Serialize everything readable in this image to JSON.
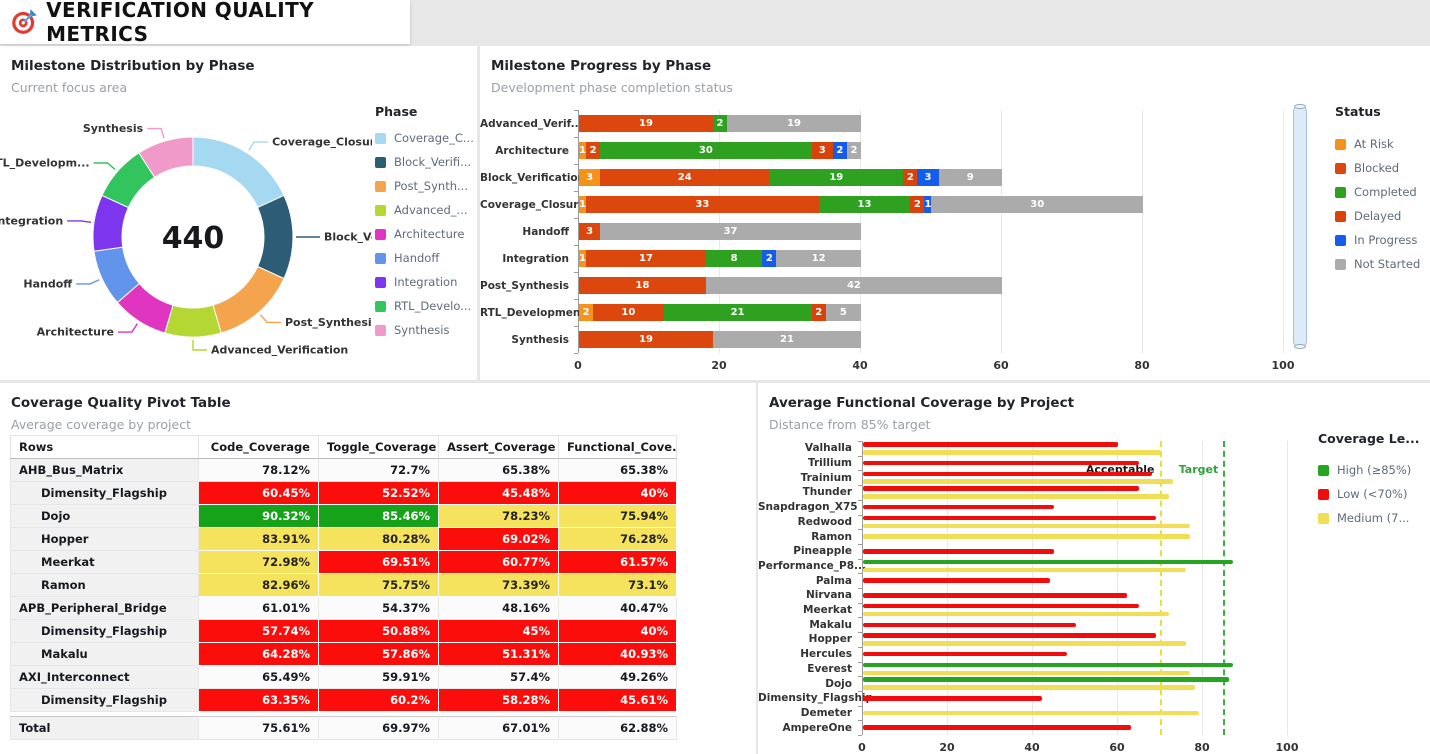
{
  "app": {
    "title": "VERIFICATION QUALITY METRICS",
    "icon": "target-dart-icon"
  },
  "chart_data": [
    {
      "id": "milestone_distribution",
      "type": "pie",
      "title": "Milestone Distribution by Phase",
      "subtitle": "Current focus area",
      "legend_title": "Phase",
      "center_label": "440",
      "labels": [
        "Coverage_Closure",
        "Block_Verification",
        "Post_Synthesis",
        "Advanced_Verification",
        "Architecture",
        "Handoff",
        "Integration",
        "RTL_Development",
        "Synthesis"
      ],
      "values": [
        80,
        60,
        60,
        40,
        40,
        40,
        40,
        40,
        40
      ],
      "colors": [
        "#A5D8F1",
        "#2D5C77",
        "#F4A44C",
        "#B4D733",
        "#DF35C1",
        "#6194EA",
        "#7D36EE",
        "#32C55E",
        "#F09ACA"
      ],
      "callout_labels": [
        "Coverage_Closure",
        "Block_Ve...",
        "Post_Synthesis",
        "Advanced_Verification",
        "Architecture",
        "Handoff",
        "Integration",
        "RTL_Developm...",
        "Synthesis"
      ],
      "legend_labels": [
        "Coverage_C...",
        "Block_Verifi...",
        "Post_Synth...",
        "Advanced_...",
        "Architecture",
        "Handoff",
        "Integration",
        "RTL_Develo...",
        "Synthesis"
      ]
    },
    {
      "id": "milestone_progress",
      "type": "bar",
      "orientation": "horizontal-stacked",
      "title": "Milestone Progress by Phase",
      "subtitle": "Development phase completion status",
      "legend_title": "Status",
      "categories": [
        "Advanced_Verif...",
        "Architecture",
        "Block_Verification",
        "Coverage_Closure",
        "Handoff",
        "Integration",
        "Post_Synthesis",
        "RTL_Development",
        "Synthesis"
      ],
      "series": [
        {
          "name": "At Risk",
          "color": "#F5921B",
          "values": [
            0,
            1,
            3,
            1,
            0,
            1,
            0,
            2,
            0
          ]
        },
        {
          "name": "Blocked",
          "color": "#DC470D",
          "values": [
            19,
            2,
            24,
            33,
            3,
            17,
            18,
            10,
            19
          ]
        },
        {
          "name": "Completed",
          "color": "#2EA121",
          "values": [
            2,
            30,
            19,
            13,
            0,
            8,
            0,
            21,
            0
          ]
        },
        {
          "name": "Delayed",
          "color": "#D9430B",
          "values": [
            0,
            3,
            2,
            2,
            0,
            0,
            0,
            2,
            0
          ]
        },
        {
          "name": "In Progress",
          "color": "#155CE8",
          "values": [
            0,
            2,
            3,
            1,
            0,
            2,
            0,
            0,
            0
          ]
        },
        {
          "name": "Not Started",
          "color": "#ABABAB",
          "values": [
            19,
            2,
            9,
            30,
            37,
            12,
            42,
            5,
            21
          ]
        }
      ],
      "x_ticks": [
        0,
        20,
        40,
        60,
        80,
        100
      ],
      "xlim": [
        0,
        100
      ]
    },
    {
      "id": "coverage_pivot",
      "type": "table",
      "title": "Coverage Quality Pivot Table",
      "subtitle": "Average coverage by project",
      "columns": [
        "Rows",
        "Code_Coverage",
        "Toggle_Coverage",
        "Assert_Coverage",
        "Functional_Cove..."
      ],
      "rows": [
        {
          "label": "AHB_Bus_Matrix",
          "indent": 0,
          "cells": [
            [
              "78.12%",
              "none"
            ],
            [
              "72.7%",
              "none"
            ],
            [
              "65.38%",
              "none"
            ],
            [
              "65.38%",
              "none"
            ]
          ]
        },
        {
          "label": "Dimensity_Flagship",
          "indent": 1,
          "cells": [
            [
              "60.45%",
              "red"
            ],
            [
              "52.52%",
              "red"
            ],
            [
              "45.48%",
              "red"
            ],
            [
              "40%",
              "red"
            ]
          ]
        },
        {
          "label": "Dojo",
          "indent": 1,
          "cells": [
            [
              "90.32%",
              "green"
            ],
            [
              "85.46%",
              "green"
            ],
            [
              "78.23%",
              "yellow"
            ],
            [
              "75.94%",
              "yellow"
            ]
          ]
        },
        {
          "label": "Hopper",
          "indent": 1,
          "cells": [
            [
              "83.91%",
              "yellow"
            ],
            [
              "80.28%",
              "yellow"
            ],
            [
              "69.02%",
              "red"
            ],
            [
              "76.28%",
              "yellow"
            ]
          ]
        },
        {
          "label": "Meerkat",
          "indent": 1,
          "cells": [
            [
              "72.98%",
              "yellow"
            ],
            [
              "69.51%",
              "red"
            ],
            [
              "60.77%",
              "red"
            ],
            [
              "61.57%",
              "red"
            ]
          ]
        },
        {
          "label": "Ramon",
          "indent": 1,
          "cells": [
            [
              "82.96%",
              "yellow"
            ],
            [
              "75.75%",
              "yellow"
            ],
            [
              "73.39%",
              "yellow"
            ],
            [
              "73.1%",
              "yellow"
            ]
          ]
        },
        {
          "label": "APB_Peripheral_Bridge",
          "indent": 0,
          "cells": [
            [
              "61.01%",
              "none"
            ],
            [
              "54.37%",
              "none"
            ],
            [
              "48.16%",
              "none"
            ],
            [
              "40.47%",
              "none"
            ]
          ]
        },
        {
          "label": "Dimensity_Flagship",
          "indent": 1,
          "cells": [
            [
              "57.74%",
              "red"
            ],
            [
              "50.88%",
              "red"
            ],
            [
              "45%",
              "red"
            ],
            [
              "40%",
              "red"
            ]
          ]
        },
        {
          "label": "Makalu",
          "indent": 1,
          "cells": [
            [
              "64.28%",
              "red"
            ],
            [
              "57.86%",
              "red"
            ],
            [
              "51.31%",
              "red"
            ],
            [
              "40.93%",
              "red"
            ]
          ]
        },
        {
          "label": "AXI_Interconnect",
          "indent": 0,
          "cells": [
            [
              "65.49%",
              "none"
            ],
            [
              "59.91%",
              "none"
            ],
            [
              "57.4%",
              "none"
            ],
            [
              "49.26%",
              "none"
            ]
          ]
        },
        {
          "label": "Dimensity_Flagship",
          "indent": 1,
          "cells": [
            [
              "63.35%",
              "red"
            ],
            [
              "60.2%",
              "red"
            ],
            [
              "58.28%",
              "red"
            ],
            [
              "45.61%",
              "red"
            ]
          ]
        }
      ],
      "total_row": {
        "label": "Total",
        "cells": [
          [
            "75.61%",
            "none"
          ],
          [
            "69.97%",
            "none"
          ],
          [
            "67.01%",
            "none"
          ],
          [
            "62.88%",
            "none"
          ]
        ]
      }
    },
    {
      "id": "functional_coverage",
      "type": "bar",
      "orientation": "horizontal",
      "title": "Average Functional Coverage by Project",
      "subtitle": "Distance from 85% target",
      "legend_title": "Coverage Le...",
      "legend_items": [
        {
          "label": "High (≥85%)",
          "color": "#26A522"
        },
        {
          "label": "Low (<70%)",
          "color": "#F20D0D"
        },
        {
          "label": "Medium (7...",
          "color": "#F0DE57"
        }
      ],
      "level_colors": {
        "High": "#26A522",
        "Low": "#F20D0D",
        "Medium": "#F0DE57"
      },
      "x_ticks": [
        0,
        20,
        40,
        60,
        80,
        100
      ],
      "xlim": [
        0,
        100
      ],
      "ref_lines": [
        {
          "label": "Acceptable",
          "value": 70,
          "color": "#E8E03A",
          "label_color": "#1a1a1a"
        },
        {
          "label": "Target",
          "value": 85,
          "color": "#3CB043",
          "label_color": "#2FA23C"
        }
      ],
      "rows": [
        {
          "project": "Valhalla",
          "bars": [
            [
              "Low",
              60
            ],
            [
              "Medium",
              70
            ]
          ]
        },
        {
          "project": "Trillium",
          "bars": [
            [
              "Low",
              65
            ]
          ]
        },
        {
          "project": "Trainium",
          "bars": [
            [
              "Low",
              68
            ],
            [
              "Medium",
              73
            ]
          ]
        },
        {
          "project": "Thunder",
          "bars": [
            [
              "Low",
              65
            ],
            [
              "Medium",
              72
            ]
          ]
        },
        {
          "project": "Snapdragon_X75",
          "bars": [
            [
              "Low",
              45
            ]
          ]
        },
        {
          "project": "Redwood",
          "bars": [
            [
              "Low",
              69
            ],
            [
              "Medium",
              77
            ]
          ]
        },
        {
          "project": "Ramon",
          "bars": [
            [
              "Medium",
              77
            ]
          ]
        },
        {
          "project": "Pineapple",
          "bars": [
            [
              "Low",
              45
            ]
          ]
        },
        {
          "project": "Performance_P8...",
          "bars": [
            [
              "High",
              87
            ],
            [
              "Medium",
              76
            ]
          ]
        },
        {
          "project": "Palma",
          "bars": [
            [
              "Low",
              44
            ]
          ]
        },
        {
          "project": "Nirvana",
          "bars": [
            [
              "Low",
              62
            ]
          ]
        },
        {
          "project": "Meerkat",
          "bars": [
            [
              "Low",
              65
            ],
            [
              "Medium",
              72
            ]
          ]
        },
        {
          "project": "Makalu",
          "bars": [
            [
              "Low",
              50
            ]
          ]
        },
        {
          "project": "Hopper",
          "bars": [
            [
              "Low",
              69
            ],
            [
              "Medium",
              76
            ]
          ]
        },
        {
          "project": "Hercules",
          "bars": [
            [
              "Low",
              48
            ]
          ]
        },
        {
          "project": "Everest",
          "bars": [
            [
              "High",
              87
            ],
            [
              "Medium",
              77
            ]
          ]
        },
        {
          "project": "Dojo",
          "bars": [
            [
              "High",
              86
            ],
            [
              "Medium",
              78
            ]
          ]
        },
        {
          "project": "Dimensity_Flagship",
          "bars": [
            [
              "Low",
              42
            ]
          ]
        },
        {
          "project": "Demeter",
          "bars": [
            [
              "Medium",
              79
            ]
          ]
        },
        {
          "project": "AmpereOne",
          "bars": [
            [
              "Low",
              63
            ]
          ]
        }
      ]
    }
  ]
}
